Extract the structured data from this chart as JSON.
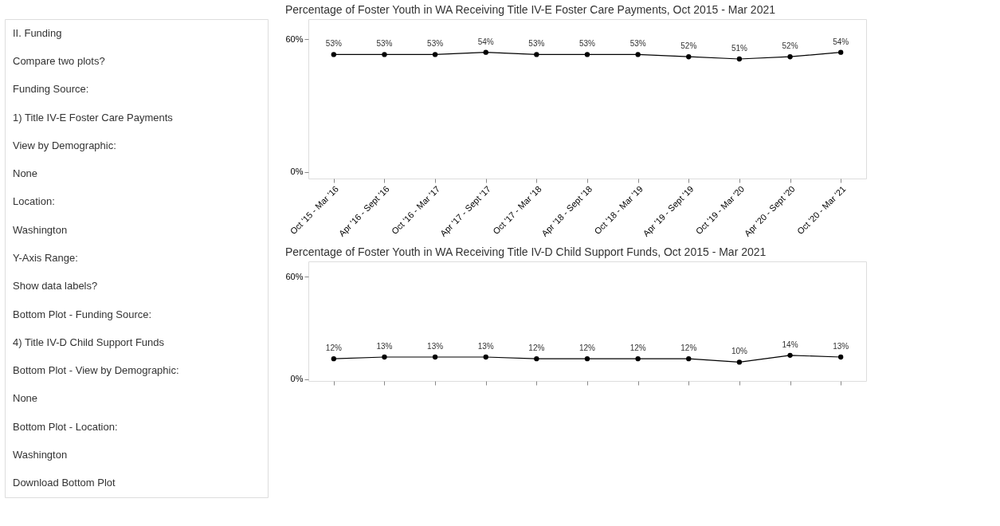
{
  "chart_data": [
    {
      "type": "other",
      "annotations": [
        "II. Funding",
        "Compare two plots?",
        "Funding Source:",
        "1) Title IV-E Foster Care Payments",
        "View by Demographic:",
        "None",
        "Location:",
        "Washington",
        "Y-Axis Range:",
        "Show data labels?",
        "Bottom Plot - Funding Source:",
        "4) Title IV-D Child Support Funds",
        "Bottom Plot - View by Demographic:",
        "None",
        "Bottom Plot - Location:",
        "Washington",
        "Download Bottom Plot"
      ]
    },
    {
      "type": "line",
      "title": "Percentage of Foster Youth in WA Receiving Title IV-E Foster Care Payments, Oct 2015 - Mar 2021",
      "categories": [
        "Oct '15 - Mar '16",
        "Apr '16 - Sept '16",
        "Oct '16 - Mar '17",
        "Apr '17 - Sept '17",
        "Oct '17 - Mar '18",
        "Apr '18 - Sept '18",
        "Oct '18 - Mar '19",
        "Apr '19 - Sept '19",
        "Oct '19 - Mar '20",
        "Apr '20 - Sept '20",
        "Oct '20 - Mar '21"
      ],
      "series": [
        {
          "color": "#000000",
          "values": [
            53,
            53,
            53,
            54,
            53,
            53,
            53,
            52,
            51,
            52,
            54
          ],
          "value_labels": [
            "53%",
            "53%",
            "53%",
            "54%",
            "53%",
            "53%",
            "53%",
            "52%",
            "51%",
            "52%",
            "54%"
          ]
        }
      ],
      "ylim": [
        -3,
        69
      ],
      "yticks": [
        {
          "value": 0,
          "label": "0%"
        },
        {
          "value": 60,
          "label": "60%"
        }
      ],
      "marker": "circle",
      "grid": false,
      "legend": false
    },
    {
      "type": "line",
      "title": "Percentage of Foster Youth in WA Receiving Title IV-D Child Support Funds, Oct 2015 - Mar 2021",
      "categories": [
        null,
        null,
        null,
        null,
        null,
        null,
        null,
        null,
        null,
        null,
        null
      ],
      "series": [
        {
          "color": "#000000",
          "values": [
            12,
            13,
            13,
            13,
            12,
            12,
            12,
            12,
            10,
            14,
            13
          ],
          "value_labels": [
            "12%",
            "13%",
            "13%",
            "13%",
            "12%",
            "12%",
            "12%",
            "12%",
            "10%",
            "14%",
            "13%"
          ]
        }
      ],
      "ylim": [
        -1,
        69
      ],
      "yticks": [
        {
          "value": 0,
          "label": "0%"
        },
        {
          "value": 60,
          "label": "60%"
        }
      ],
      "marker": "circle",
      "grid": false,
      "legend": false,
      "tick_labels": "y"
    }
  ]
}
